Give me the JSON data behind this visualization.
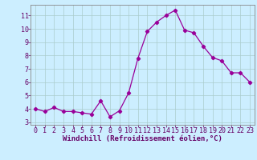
{
  "x": [
    0,
    1,
    2,
    3,
    4,
    5,
    6,
    7,
    8,
    9,
    10,
    11,
    12,
    13,
    14,
    15,
    16,
    17,
    18,
    19,
    20,
    21,
    22,
    23
  ],
  "y": [
    4.0,
    3.8,
    4.1,
    3.8,
    3.8,
    3.7,
    3.6,
    4.6,
    3.4,
    3.85,
    5.2,
    7.8,
    9.8,
    10.5,
    11.0,
    11.4,
    9.9,
    9.7,
    8.7,
    7.85,
    7.6,
    6.7,
    6.7,
    6.0
  ],
  "line_color": "#990099",
  "marker": "D",
  "marker_size": 2.2,
  "bg_color": "#cceeff",
  "grid_color": "#aacccc",
  "axis_color": "#660066",
  "spine_color": "#888888",
  "xlabel": "Windchill (Refroidissement éolien,°C)",
  "xlim": [
    -0.5,
    23.5
  ],
  "ylim": [
    2.8,
    11.8
  ],
  "yticks": [
    3,
    4,
    5,
    6,
    7,
    8,
    9,
    10,
    11
  ],
  "xticks": [
    0,
    1,
    2,
    3,
    4,
    5,
    6,
    7,
    8,
    9,
    10,
    11,
    12,
    13,
    14,
    15,
    16,
    17,
    18,
    19,
    20,
    21,
    22,
    23
  ],
  "label_fontsize": 6.5,
  "tick_fontsize": 6.0
}
